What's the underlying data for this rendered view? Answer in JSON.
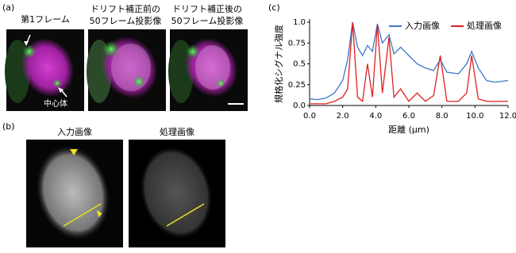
{
  "panel_a": {
    "label": "(a)",
    "images": [
      {
        "title": [
          "第1フレーム"
        ]
      },
      {
        "title": [
          "ドリフト補正前の",
          "50フレーム投影像"
        ]
      },
      {
        "title": [
          "ドリフト補正後の",
          "50フレーム投影像"
        ]
      }
    ],
    "annotation": "中心体"
  },
  "panel_b": {
    "label": "(b)",
    "images": [
      {
        "title": "入力画像"
      },
      {
        "title": "処理画像"
      }
    ]
  },
  "panel_c": {
    "label": "(c)"
  },
  "chart_data": {
    "type": "line",
    "ylabel": "規格化シグナル強度",
    "xlabel": "距離 (μm)",
    "x": [
      0,
      0.5,
      1.0,
      1.5,
      2.0,
      2.3,
      2.6,
      2.9,
      3.2,
      3.5,
      3.8,
      4.1,
      4.4,
      4.8,
      5.1,
      5.5,
      6.0,
      6.5,
      7.0,
      7.5,
      7.9,
      8.3,
      9.0,
      9.5,
      9.8,
      10.2,
      10.7,
      11.2,
      12.0
    ],
    "series": [
      {
        "name": "入力画像",
        "color": "#3a78c8",
        "values": [
          0.08,
          0.07,
          0.09,
          0.15,
          0.3,
          0.55,
          1.0,
          0.7,
          0.6,
          0.72,
          0.65,
          0.98,
          0.75,
          0.85,
          0.62,
          0.7,
          0.6,
          0.5,
          0.45,
          0.42,
          0.55,
          0.4,
          0.38,
          0.5,
          0.65,
          0.45,
          0.3,
          0.28,
          0.3
        ]
      },
      {
        "name": "処理画像",
        "color": "#e02020",
        "values": [
          0.02,
          0.02,
          0.02,
          0.05,
          0.1,
          0.2,
          1.0,
          0.1,
          0.05,
          0.5,
          0.1,
          0.97,
          0.15,
          0.82,
          0.1,
          0.2,
          0.05,
          0.15,
          0.05,
          0.12,
          0.6,
          0.05,
          0.05,
          0.15,
          0.6,
          0.08,
          0.05,
          0.05,
          0.05
        ]
      }
    ],
    "xlim": [
      0,
      12
    ],
    "ylim": [
      0,
      1
    ],
    "xticks": [
      {
        "value": 0,
        "label": "0.0"
      },
      {
        "value": 2,
        "label": "2.0"
      },
      {
        "value": 4,
        "label": "4.0"
      },
      {
        "value": 6,
        "label": "6.0"
      },
      {
        "value": 8,
        "label": "8.0"
      },
      {
        "value": 10,
        "label": "10.0"
      },
      {
        "value": 12,
        "label": "12.0"
      }
    ],
    "yticks": [
      {
        "value": 0,
        "label": "0.0"
      },
      0.25,
      0.5,
      0.75,
      {
        "value": 1,
        "label": "1.0"
      }
    ],
    "legend": "upper right"
  }
}
